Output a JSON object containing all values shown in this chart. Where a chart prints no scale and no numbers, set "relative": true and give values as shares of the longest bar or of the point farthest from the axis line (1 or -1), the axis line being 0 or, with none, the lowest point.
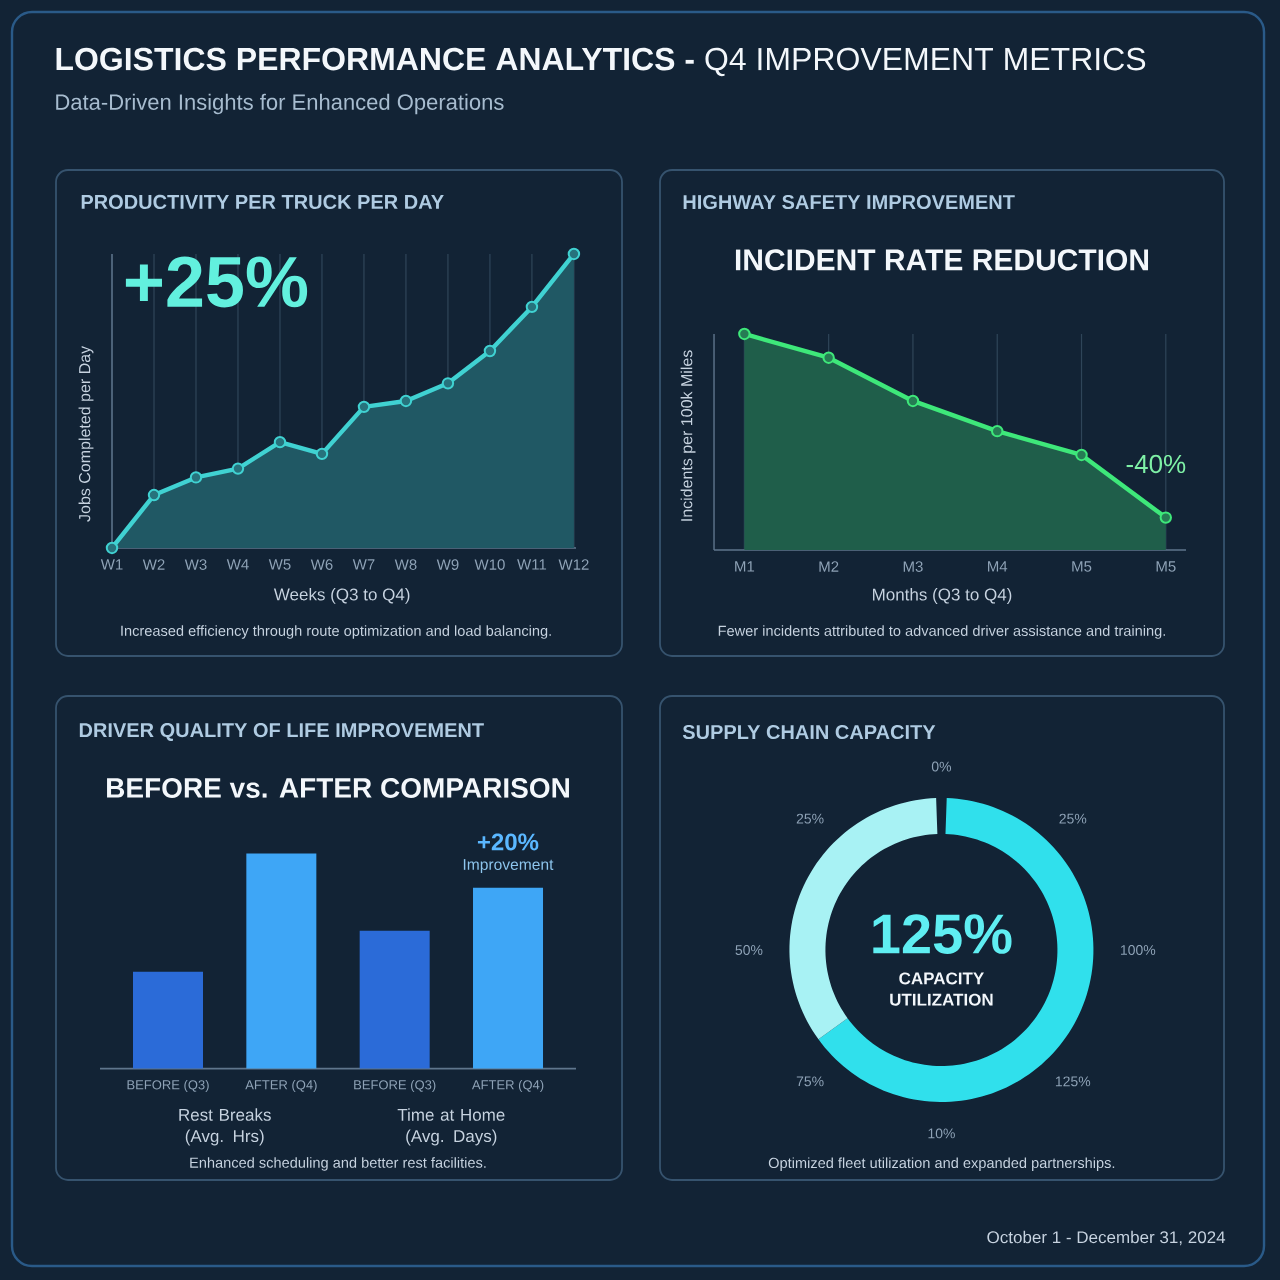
{
  "chart_data": [
    {
      "type": "other",
      "title": "**LOGISTICS PERFORMANCE ANALYTICS -** Q4 IMPROVEMENT METRICS",
      "subtitle": "Data-Driven Insights for Enhanced Operations"
    },
    {
      "type": "area",
      "title": "PRODUCTIVITY PER TRUCK PER DAY",
      "xlabel": "Weeks (Q3 to Q4)",
      "ylabel": "Jobs Completed per Day",
      "categories": [
        "W1",
        "W2",
        "W3",
        "W4",
        "W5",
        "W6",
        "W7",
        "W8",
        "W9",
        "W10",
        "W11",
        "W12"
      ],
      "values": [
        0,
        0.18,
        0.24,
        0.27,
        0.36,
        0.32,
        0.48,
        0.5,
        0.56,
        0.67,
        0.82,
        1
      ],
      "color": "#40d2d2",
      "relative": true,
      "grid": "x",
      "marker": "circle",
      "annotations": [
        "+25%",
        "Increased efficiency through route optimization and load balancing."
      ]
    },
    {
      "type": "area",
      "title": "HIGHWAY SAFETY IMPROVEMENT",
      "subtitle": "INCIDENT RATE REDUCTION",
      "xlabel": "Months (Q3 to Q4)",
      "ylabel": "Incidents per 100k Miles",
      "categories": [
        "M1",
        "M2",
        "M3",
        "M4",
        "M5",
        "M5"
      ],
      "values": [
        1,
        0.89,
        0.69,
        0.55,
        0.44,
        0.15
      ],
      "color": "#3ee87a",
      "relative": true,
      "grid": "x",
      "marker": "circle",
      "annotations": [
        "-40%",
        "Fewer incidents attributed to advanced driver assistance and training."
      ]
    },
    {
      "type": "bar",
      "title": "DRIVER QUALITY OF LIFE IMPROVEMENT",
      "subtitle": "BEFORE vs. AFTER COMPARISON",
      "categories": [
        "BEFORE (Q3)",
        "AFTER (Q4)",
        "BEFORE (Q3)",
        "AFTER (Q4)"
      ],
      "values": [
        0.45,
        1,
        0.64,
        0.84
      ],
      "colors": [
        "#2b6bd8",
        "#3ea6f6",
        "#2b6bd8",
        "#3ea6f6"
      ],
      "relative": true,
      "annotations": [
        "+20%",
        "Improvement",
        "Rest Breaks (Avg. Hrs)",
        "Time at Home (Avg. Days)",
        "Enhanced scheduling and better rest facilities."
      ]
    },
    {
      "type": "donut",
      "title": "SUPPLY CHAIN CAPACITY",
      "categories": [
        null,
        null
      ],
      "values": [
        65,
        35
      ],
      "colors": [
        "#30e0ec",
        "#a8f2f4"
      ],
      "annotations": [
        "0%",
        "25%",
        "100%",
        "125%",
        "10%",
        "75%",
        "50%",
        "25%",
        "125%",
        "CAPACITY UTILIZATION",
        "Optimized fleet utilization and expanded partnerships."
      ]
    },
    {
      "type": "other",
      "annotations": [
        "October 1 - December 31, 2024"
      ]
    }
  ]
}
